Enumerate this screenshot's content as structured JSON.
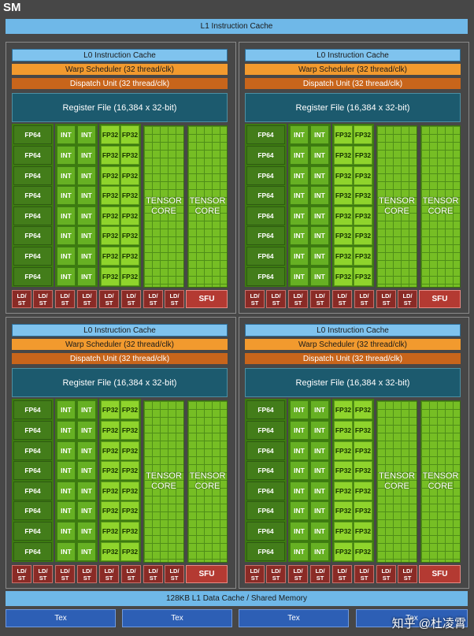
{
  "sm_label": "SM",
  "l1_instruction_cache": "L1 Instruction Cache",
  "partition": {
    "l0_cache": "L0 Instruction Cache",
    "warp_scheduler": "Warp Scheduler (32 thread/clk)",
    "dispatch_unit": "Dispatch Unit (32 thread/clk)",
    "register_file": "Register File (16,384 x 32-bit)",
    "fp64": "FP64",
    "int": "INT",
    "fp32": "FP32",
    "tensor_core": "TENSOR\nCORE",
    "ld_st": "LD/\nST",
    "sfu": "SFU",
    "rows": 8,
    "ld_st_count": 8
  },
  "partition_count": 4,
  "l1_data_cache": "128KB L1 Data Cache / Shared Memory",
  "tex_units": [
    "Tex",
    "Tex",
    "Tex",
    "Tex"
  ],
  "watermark": "知乎 @杜凌霄",
  "colors": {
    "background": "#474747",
    "l1_cache": "#6fb8e8",
    "warp_scheduler": "#f29a2e",
    "dispatch_unit": "#c8651b",
    "register_file": "#1c5a6e",
    "fp64": "#437d1a",
    "int": "#66b023",
    "fp32": "#8fd42c",
    "tensor_core": "#76be24",
    "ld_st": "#8a2b26",
    "sfu": "#b43a32",
    "tex": "#2d5fb5"
  }
}
